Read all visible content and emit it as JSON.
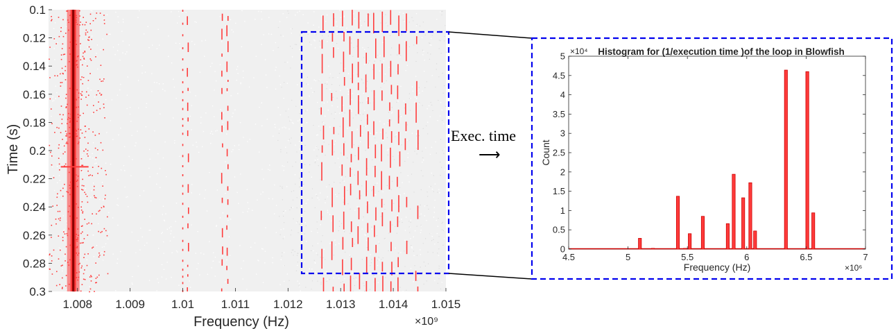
{
  "spectrogram": {
    "type": "heatmap",
    "xlabel": "Frequency (Hz)",
    "ylabel": "Time (s)",
    "x_exponent_label": "×10⁹",
    "xlim": [
      1.00745,
      1.015
    ],
    "ylim": [
      0.1,
      0.3
    ],
    "y_reversed": true,
    "xticks": [
      1.008,
      1.009,
      1.01,
      1.011,
      1.012,
      1.013,
      1.014,
      1.015
    ],
    "xtick_labels": [
      "1.008",
      "1.009",
      "1.01",
      "1.011",
      "1.012",
      "1.013",
      "1.014",
      "1.015"
    ],
    "yticks": [
      0.1,
      0.12,
      0.14,
      0.16,
      0.18,
      0.2,
      0.22,
      0.24,
      0.26,
      0.28,
      0.3
    ],
    "ytick_labels": [
      "0.1",
      "0.12",
      "0.14",
      "0.16",
      "0.18",
      "0.2",
      "0.22",
      "0.24",
      "0.26",
      "0.28",
      "0.3"
    ],
    "background_color": "#f0f0f0",
    "trace_color": "#ff3b3b",
    "carrier_color": "#8b0000",
    "carrier_frequency": 1.00792,
    "sideband_frequencies_dense": [
      1.01265,
      1.01285,
      1.01305,
      1.0132,
      1.01335,
      1.0135,
      1.01365,
      1.0138,
      1.01395,
      1.0141,
      1.01425,
      1.01445
    ],
    "sideband_frequencies_sparse": [
      1.0101,
      1.01075,
      1.01085
    ]
  },
  "annotation": {
    "arrow_label": "Exec. time",
    "arrow_glyph": "⟶",
    "box_color": "#0000ee"
  },
  "chart_data": {
    "type": "bar",
    "title": "Histogram for (1/execution time )of the loop in Blowfish",
    "xlabel": "Frequency (Hz)",
    "ylabel": "Count",
    "x_exponent_label": "×10⁶",
    "y_exponent_label": "×10⁴",
    "xlim": [
      4.5,
      7
    ],
    "ylim": [
      0,
      5
    ],
    "xticks": [
      4.5,
      5,
      5.5,
      6,
      6.5,
      7
    ],
    "xtick_labels": [
      "4.5",
      "5",
      "5.5",
      "6",
      "6.5",
      "7"
    ],
    "yticks": [
      0,
      0.5,
      1,
      1.5,
      2,
      2.5,
      3,
      3.5,
      4,
      4.5,
      5
    ],
    "ytick_labels": [
      "0",
      "0.5",
      "1",
      "1.5",
      "2",
      "2.5",
      "3",
      "3.5",
      "4",
      "4.5",
      "5"
    ],
    "bar_color": "#ff3b3b",
    "bar_edge_color": "#cc0000",
    "bin_width": 0.025,
    "bars": [
      {
        "x": 5.1,
        "value": 0.28
      },
      {
        "x": 5.21,
        "value": 0.02
      },
      {
        "x": 5.42,
        "value": 1.37
      },
      {
        "x": 5.48,
        "value": 0.02
      },
      {
        "x": 5.52,
        "value": 0.4
      },
      {
        "x": 5.63,
        "value": 0.85
      },
      {
        "x": 5.84,
        "value": 0.66
      },
      {
        "x": 5.89,
        "value": 1.94
      },
      {
        "x": 5.97,
        "value": 1.33
      },
      {
        "x": 6.03,
        "value": 1.72
      },
      {
        "x": 6.07,
        "value": 0.47
      },
      {
        "x": 6.33,
        "value": 4.64
      },
      {
        "x": 6.51,
        "value": 4.6
      },
      {
        "x": 6.56,
        "value": 0.94
      }
    ],
    "grid": false,
    "legend": "none"
  }
}
